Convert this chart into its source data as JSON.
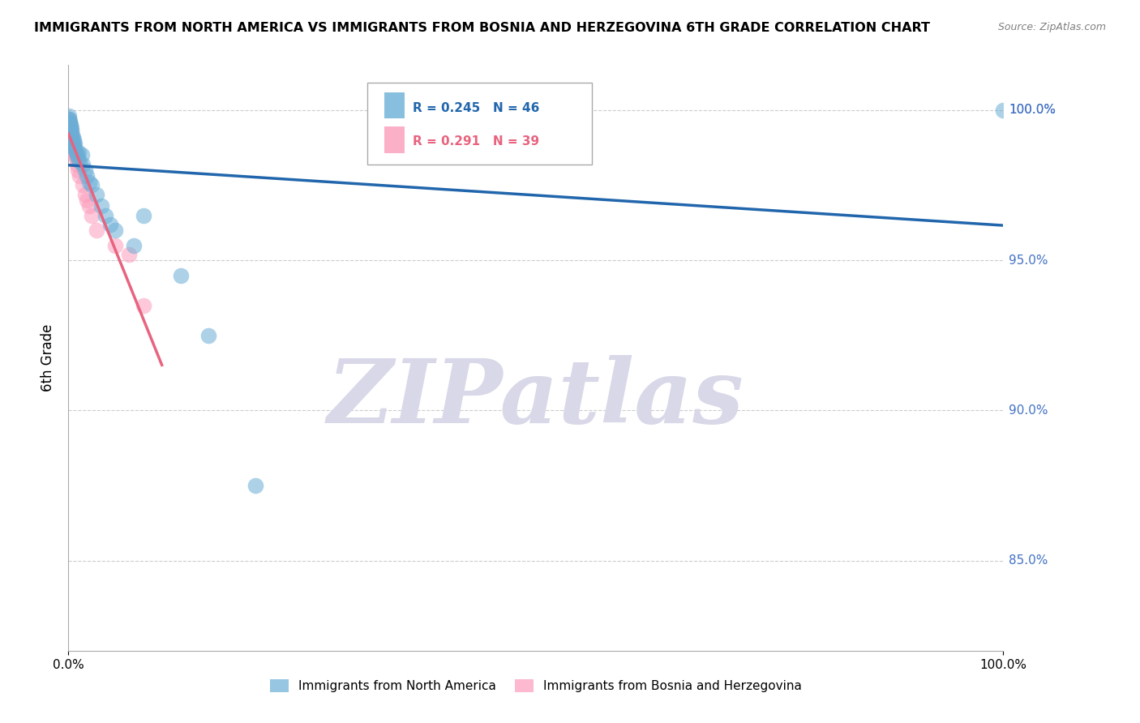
{
  "title": "IMMIGRANTS FROM NORTH AMERICA VS IMMIGRANTS FROM BOSNIA AND HERZEGOVINA 6TH GRADE CORRELATION CHART",
  "source": "Source: ZipAtlas.com",
  "ylabel": "6th Grade",
  "xlim": [
    0.0,
    100.0
  ],
  "ylim": [
    82.0,
    101.5
  ],
  "yticks": [
    85.0,
    90.0,
    95.0,
    100.0
  ],
  "legend_blue_label": "Immigrants from North America",
  "legend_pink_label": "Immigrants from Bosnia and Herzegovina",
  "blue_R": 0.245,
  "blue_N": 46,
  "pink_R": 0.291,
  "pink_N": 39,
  "blue_color": "#6baed6",
  "pink_color": "#fc9cbb",
  "blue_line_color": "#2166ac",
  "pink_line_color": "#e8637f",
  "watermark": "ZIPatlas",
  "watermark_color": "#d8d8e8",
  "blue_x": [
    0.05,
    0.08,
    0.1,
    0.12,
    0.15,
    0.18,
    0.2,
    0.22,
    0.25,
    0.28,
    0.3,
    0.35,
    0.4,
    0.45,
    0.5,
    0.55,
    0.6,
    0.65,
    0.7,
    0.8,
    0.9,
    1.0,
    1.1,
    1.2,
    1.4,
    1.5,
    1.8,
    2.0,
    2.2,
    2.5,
    3.0,
    3.5,
    4.0,
    4.5,
    5.0,
    7.0,
    8.0,
    12.0,
    15.0,
    20.0,
    0.06,
    0.09,
    0.16,
    0.32,
    0.42,
    100.0
  ],
  "blue_y": [
    99.8,
    99.7,
    99.6,
    99.5,
    99.4,
    99.6,
    99.3,
    99.5,
    99.2,
    99.4,
    99.1,
    99.3,
    99.0,
    98.9,
    99.1,
    98.8,
    99.0,
    98.7,
    98.9,
    98.6,
    98.5,
    98.4,
    98.6,
    98.3,
    98.5,
    98.2,
    98.0,
    97.8,
    97.6,
    97.5,
    97.2,
    96.8,
    96.5,
    96.2,
    96.0,
    95.5,
    96.5,
    94.5,
    92.5,
    87.5,
    99.7,
    99.5,
    99.4,
    99.2,
    98.8,
    100.0
  ],
  "pink_x": [
    0.04,
    0.06,
    0.08,
    0.1,
    0.12,
    0.15,
    0.18,
    0.2,
    0.22,
    0.25,
    0.28,
    0.3,
    0.35,
    0.4,
    0.45,
    0.5,
    0.55,
    0.6,
    0.65,
    0.7,
    0.8,
    0.9,
    1.0,
    1.2,
    1.5,
    2.0,
    2.5,
    3.0,
    0.07,
    0.13,
    0.16,
    0.23,
    0.32,
    0.42,
    1.8,
    2.2,
    5.0,
    6.5,
    8.0
  ],
  "pink_y": [
    99.7,
    99.6,
    99.5,
    99.4,
    99.5,
    99.3,
    99.5,
    99.2,
    99.4,
    99.1,
    99.3,
    99.0,
    98.9,
    99.1,
    98.7,
    98.8,
    98.6,
    98.9,
    98.5,
    98.7,
    98.4,
    98.2,
    98.0,
    97.8,
    97.5,
    97.0,
    96.5,
    96.0,
    99.6,
    99.4,
    99.3,
    99.2,
    99.0,
    98.8,
    97.2,
    96.8,
    95.5,
    95.2,
    93.5
  ]
}
